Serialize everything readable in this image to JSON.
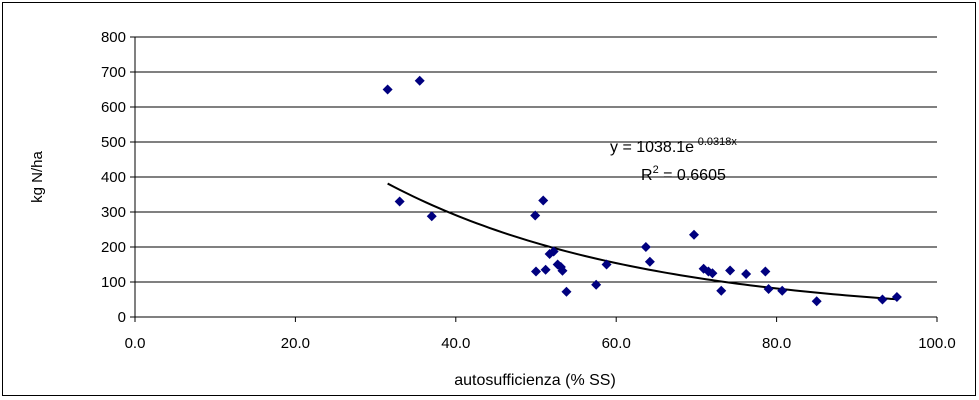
{
  "chart_data": {
    "type": "scatter",
    "xlabel": "autosufficienza (% SS)",
    "ylabel": "kg N/ha",
    "xlim": [
      0,
      100
    ],
    "ylim": [
      0,
      800
    ],
    "x_ticks": [
      "0.0",
      "20.0",
      "40.0",
      "60.0",
      "80.0",
      "100.0"
    ],
    "y_ticks": [
      "0",
      "100",
      "200",
      "300",
      "400",
      "500",
      "600",
      "700",
      "800"
    ],
    "grid": "horizontal",
    "marker_color": "#00007F",
    "trendline_color": "#000000",
    "trendline": {
      "type": "exponential",
      "a": 1038.1,
      "b": -0.0318,
      "x_range": [
        31.5,
        95
      ],
      "equation_prefix": "y = 1038.1e",
      "equation_exponent": "-0.0318x",
      "r2_prefix": "R",
      "r2_sup": "2",
      "r2_suffix": " = 0.6605"
    },
    "points": [
      {
        "x": 31.5,
        "y": 650
      },
      {
        "x": 35.5,
        "y": 675
      },
      {
        "x": 33.0,
        "y": 330
      },
      {
        "x": 37.0,
        "y": 288
      },
      {
        "x": 49.9,
        "y": 290
      },
      {
        "x": 50.9,
        "y": 333
      },
      {
        "x": 50.0,
        "y": 130
      },
      {
        "x": 51.2,
        "y": 135
      },
      {
        "x": 51.7,
        "y": 180
      },
      {
        "x": 52.2,
        "y": 187
      },
      {
        "x": 52.7,
        "y": 150
      },
      {
        "x": 53.1,
        "y": 143
      },
      {
        "x": 53.3,
        "y": 132
      },
      {
        "x": 53.8,
        "y": 72
      },
      {
        "x": 57.5,
        "y": 92
      },
      {
        "x": 58.8,
        "y": 150
      },
      {
        "x": 63.7,
        "y": 200
      },
      {
        "x": 64.2,
        "y": 158
      },
      {
        "x": 69.7,
        "y": 235
      },
      {
        "x": 70.9,
        "y": 138
      },
      {
        "x": 71.5,
        "y": 130
      },
      {
        "x": 72.0,
        "y": 125
      },
      {
        "x": 73.1,
        "y": 75
      },
      {
        "x": 74.2,
        "y": 133
      },
      {
        "x": 76.2,
        "y": 123
      },
      {
        "x": 78.6,
        "y": 130
      },
      {
        "x": 79.0,
        "y": 80
      },
      {
        "x": 80.7,
        "y": 75
      },
      {
        "x": 85.0,
        "y": 45
      },
      {
        "x": 93.2,
        "y": 50
      },
      {
        "x": 95.0,
        "y": 57
      }
    ]
  }
}
